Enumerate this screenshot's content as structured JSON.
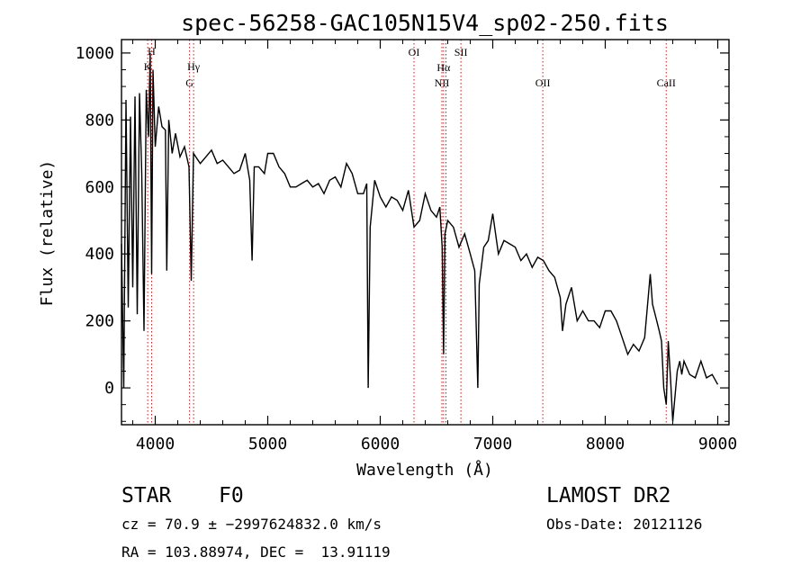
{
  "chart_data": {
    "type": "line",
    "title": "spec-56258-GAC105N15V4_sp02-250.fits",
    "xlabel": "Wavelength (Å)",
    "ylabel": "Flux (relative)",
    "xlim": [
      3700,
      9100
    ],
    "ylim": [
      -110,
      1040
    ],
    "xticks": [
      4000,
      5000,
      6000,
      7000,
      8000,
      9000
    ],
    "yticks": [
      0,
      200,
      400,
      600,
      800,
      1000
    ],
    "grid": false,
    "line_color": "#000000",
    "line_marker_color": "#b22222",
    "series": [
      {
        "x": [
          3700,
          3720,
          3740,
          3760,
          3780,
          3800,
          3820,
          3840,
          3860,
          3880,
          3900,
          3920,
          3940,
          3955,
          3968,
          3980,
          4000,
          4030,
          4060,
          4090,
          4102,
          4120,
          4150,
          4180,
          4220,
          4260,
          4300,
          4320,
          4340,
          4360,
          4400,
          4450,
          4500,
          4550,
          4600,
          4650,
          4700,
          4750,
          4800,
          4840,
          4861,
          4880,
          4920,
          4970,
          5000,
          5050,
          5100,
          5150,
          5200,
          5250,
          5300,
          5350,
          5400,
          5450,
          5500,
          5550,
          5600,
          5650,
          5700,
          5750,
          5800,
          5850,
          5880,
          5893,
          5910,
          5950,
          6000,
          6050,
          6100,
          6150,
          6200,
          6250,
          6300,
          6350,
          6400,
          6450,
          6500,
          6530,
          6550,
          6563,
          6575,
          6600,
          6650,
          6700,
          6750,
          6800,
          6840,
          6867,
          6880,
          6920,
          6960,
          7000,
          7050,
          7100,
          7150,
          7200,
          7250,
          7300,
          7350,
          7400,
          7450,
          7500,
          7550,
          7600,
          7620,
          7650,
          7700,
          7750,
          7800,
          7850,
          7900,
          7950,
          8000,
          8050,
          8100,
          8150,
          8200,
          8250,
          8300,
          8350,
          8400,
          8420,
          8450,
          8480,
          8500,
          8520,
          8542,
          8560,
          8580,
          8600,
          8640,
          8662,
          8680,
          8700,
          8750,
          8800,
          8850,
          8900,
          8950,
          9000
        ],
        "values": [
          430,
          0,
          860,
          240,
          810,
          300,
          870,
          220,
          880,
          640,
          170,
          890,
          750,
          1000,
          340,
          950,
          720,
          840,
          780,
          770,
          350,
          800,
          700,
          760,
          690,
          720,
          660,
          320,
          700,
          690,
          670,
          690,
          710,
          670,
          680,
          660,
          640,
          650,
          700,
          620,
          380,
          660,
          660,
          640,
          700,
          700,
          660,
          640,
          600,
          600,
          610,
          620,
          600,
          610,
          580,
          620,
          630,
          600,
          670,
          640,
          580,
          580,
          610,
          0,
          480,
          620,
          570,
          540,
          570,
          560,
          530,
          590,
          480,
          500,
          580,
          530,
          510,
          540,
          420,
          100,
          460,
          500,
          480,
          420,
          460,
          400,
          350,
          0,
          310,
          420,
          440,
          520,
          400,
          440,
          430,
          420,
          380,
          400,
          360,
          390,
          380,
          350,
          330,
          270,
          170,
          250,
          300,
          200,
          230,
          200,
          200,
          180,
          230,
          230,
          200,
          150,
          100,
          130,
          110,
          150,
          340,
          250,
          210,
          170,
          140,
          0,
          -50,
          140,
          30,
          -100,
          50,
          80,
          40,
          80,
          40,
          30,
          80,
          30,
          40,
          10
        ]
      }
    ],
    "line_markers": [
      {
        "x": 3933,
        "labels": [
          "",
          "K"
        ]
      },
      {
        "x": 3968,
        "labels": [
          "H",
          ""
        ]
      },
      {
        "x": 4305,
        "labels": [
          "",
          "G"
        ]
      },
      {
        "x": 4341,
        "labels": [
          "Hγ",
          ""
        ]
      },
      {
        "x": 6300,
        "labels": [
          "OI",
          ""
        ]
      },
      {
        "x": 6548,
        "labels": [
          "",
          "NII"
        ]
      },
      {
        "x": 6563,
        "labels": [
          "Hα",
          ""
        ]
      },
      {
        "x": 6584,
        "labels": [
          "",
          ""
        ]
      },
      {
        "x": 6717,
        "labels": [
          "SII",
          ""
        ]
      },
      {
        "x": 7445,
        "labels": [
          "",
          "OII"
        ]
      },
      {
        "x": 8542,
        "labels": [
          "",
          "CaII"
        ]
      }
    ]
  },
  "info": {
    "object_class": "STAR",
    "subclass": "F0",
    "survey": "LAMOST DR2",
    "cz_line": "cz = 70.9 ± −2997624832.0 km/s",
    "obs_date_line": "Obs-Date: 20121126",
    "radec_line": "RA = 103.88974, DEC =  13.91119"
  }
}
